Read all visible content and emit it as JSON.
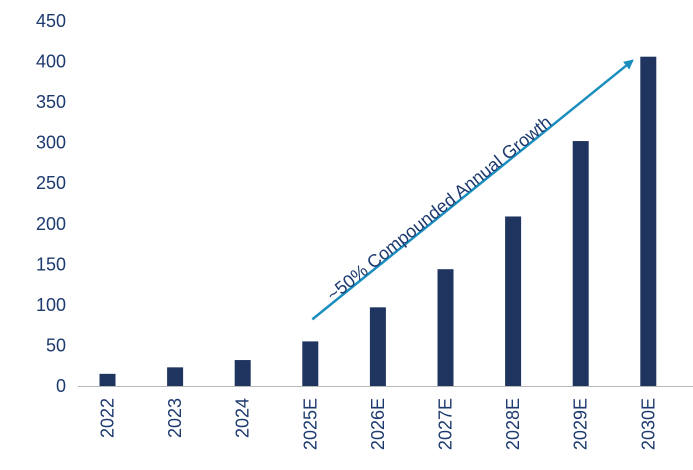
{
  "colors": {
    "bar": "#1f3560",
    "axis": "#1d3a6e",
    "annotation": "#1a8fbf"
  },
  "chart_data": {
    "type": "bar",
    "categories": [
      "2022",
      "2023",
      "2024",
      "2025E",
      "2026E",
      "2027E",
      "2028E",
      "2029E",
      "2030E"
    ],
    "values": [
      15,
      23,
      32,
      55,
      97,
      144,
      209,
      302,
      406
    ],
    "title": "",
    "xlabel": "",
    "ylabel": "",
    "ylim": [
      0,
      450
    ],
    "yticks": [
      0,
      50,
      100,
      150,
      200,
      250,
      300,
      350,
      400,
      450
    ],
    "grid": false,
    "legend": "none",
    "annotation": {
      "text": "~50% Compounded Annual Growth",
      "from_category": "2025E",
      "to_category": "2030E"
    }
  }
}
